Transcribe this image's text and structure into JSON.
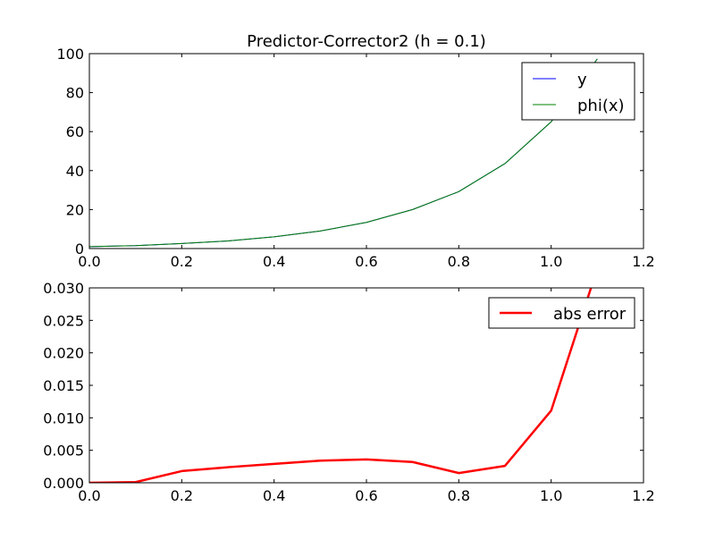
{
  "chart_data": [
    {
      "type": "line",
      "title": "Predictor-Corrector2 (h = 0.1)",
      "xlabel": "",
      "ylabel": "",
      "xlim": [
        0,
        1.2
      ],
      "ylim": [
        0,
        100
      ],
      "xticks": [
        "0.0",
        "0.2",
        "0.4",
        "0.6",
        "0.8",
        "1.0",
        "1.2"
      ],
      "yticks": [
        "0",
        "20",
        "40",
        "60",
        "80",
        "100"
      ],
      "grid": false,
      "legend_position": "top-right",
      "x": [
        0.0,
        0.1,
        0.2,
        0.3,
        0.4,
        0.5,
        0.6,
        0.7,
        0.8,
        0.9,
        1.0,
        1.1
      ],
      "series": [
        {
          "name": "y",
          "color": "#0000ff",
          "values": [
            1.0,
            1.5,
            2.6,
            3.9,
            6.0,
            9.0,
            13.4,
            20.0,
            29.2,
            43.6,
            65.0,
            97.3
          ]
        },
        {
          "name": "phi(x)",
          "color": "#008000",
          "values": [
            1.0,
            1.5,
            2.6,
            3.9,
            6.0,
            9.0,
            13.4,
            20.0,
            29.2,
            43.6,
            65.0,
            97.3
          ]
        }
      ]
    },
    {
      "type": "line",
      "title": "",
      "xlabel": "",
      "ylabel": "",
      "xlim": [
        0,
        1.2
      ],
      "ylim": [
        0,
        0.03
      ],
      "xticks": [
        "0.0",
        "0.2",
        "0.4",
        "0.6",
        "0.8",
        "1.0",
        "1.2"
      ],
      "yticks": [
        "0.000",
        "0.005",
        "0.010",
        "0.015",
        "0.020",
        "0.025",
        "0.030"
      ],
      "grid": false,
      "legend_position": "top-right",
      "x": [
        0.0,
        0.1,
        0.2,
        0.3,
        0.4,
        0.5,
        0.6,
        0.7,
        0.8,
        0.9,
        1.0,
        1.1
      ],
      "series": [
        {
          "name": "abs error",
          "color": "#ff0000",
          "values": [
            0.0,
            0.0001,
            0.0018,
            0.0024,
            0.0029,
            0.0034,
            0.0036,
            0.0032,
            0.0015,
            0.0026,
            0.0111,
            0.033
          ]
        }
      ]
    }
  ]
}
